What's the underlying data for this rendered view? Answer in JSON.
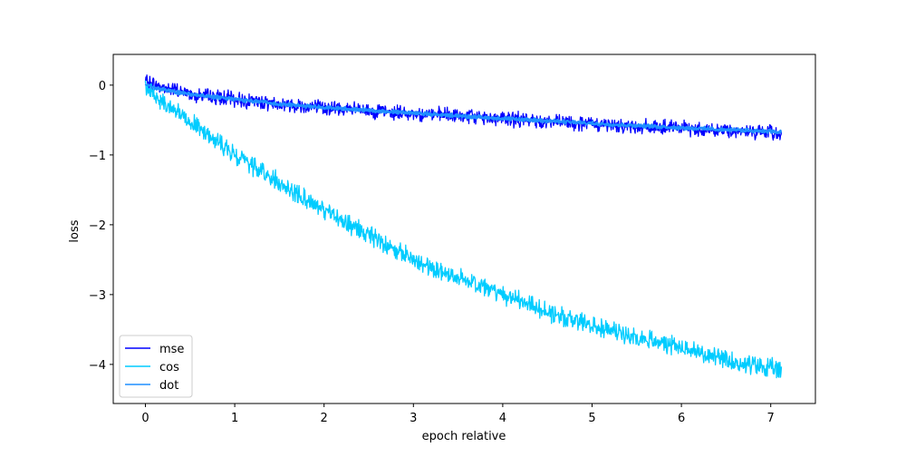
{
  "chart_data": {
    "type": "line",
    "title": "",
    "xlabel": "epoch relative",
    "ylabel": "loss",
    "xlim": [
      -0.36,
      7.5
    ],
    "ylim": [
      -4.56,
      0.44
    ],
    "xticks": [
      0,
      1,
      2,
      3,
      4,
      5,
      6,
      7
    ],
    "xtick_labels": [
      "0",
      "1",
      "2",
      "3",
      "4",
      "5",
      "6",
      "7"
    ],
    "yticks": [
      0,
      -1,
      -2,
      -3,
      -4
    ],
    "ytick_labels": [
      "0",
      "−1",
      "−2",
      "−3",
      "−4"
    ],
    "grid": false,
    "legend_position": "lower-left",
    "series": [
      {
        "name": "mse",
        "color": "#0000ff",
        "x": [
          0,
          0.25,
          0.5,
          0.75,
          1.0,
          1.5,
          2.0,
          2.5,
          3.0,
          3.5,
          4.0,
          4.5,
          5.0,
          5.5,
          6.0,
          6.5,
          7.0,
          7.12
        ],
        "y": [
          0.05,
          -0.05,
          -0.12,
          -0.17,
          -0.2,
          -0.27,
          -0.32,
          -0.37,
          -0.41,
          -0.44,
          -0.48,
          -0.52,
          -0.56,
          -0.59,
          -0.62,
          -0.65,
          -0.68,
          -0.7
        ],
        "noise": 0.08
      },
      {
        "name": "cos",
        "color": "#00ccff",
        "x": [
          0,
          0.1,
          0.25,
          0.5,
          0.75,
          1.0,
          1.25,
          1.5,
          2.0,
          2.5,
          3.0,
          3.5,
          4.0,
          4.5,
          5.0,
          5.5,
          6.0,
          6.5,
          7.0,
          7.12
        ],
        "y": [
          0.0,
          -0.15,
          -0.3,
          -0.5,
          -0.75,
          -1.0,
          -1.2,
          -1.4,
          -1.8,
          -2.15,
          -2.5,
          -2.75,
          -3.0,
          -3.25,
          -3.45,
          -3.6,
          -3.75,
          -3.95,
          -4.05,
          -4.1
        ],
        "noise": 0.1
      },
      {
        "name": "dot",
        "color": "#1f8fff",
        "x": [
          0,
          0.25,
          0.5,
          0.75,
          1.0,
          1.5,
          2.0,
          2.5,
          3.0,
          3.5,
          4.0,
          4.5,
          5.0,
          5.5,
          6.0,
          6.5,
          7.0,
          7.12
        ],
        "y": [
          0.0,
          -0.08,
          -0.13,
          -0.17,
          -0.2,
          -0.27,
          -0.32,
          -0.36,
          -0.4,
          -0.44,
          -0.48,
          -0.51,
          -0.55,
          -0.58,
          -0.61,
          -0.64,
          -0.66,
          -0.68
        ],
        "noise": 0.02
      }
    ]
  }
}
